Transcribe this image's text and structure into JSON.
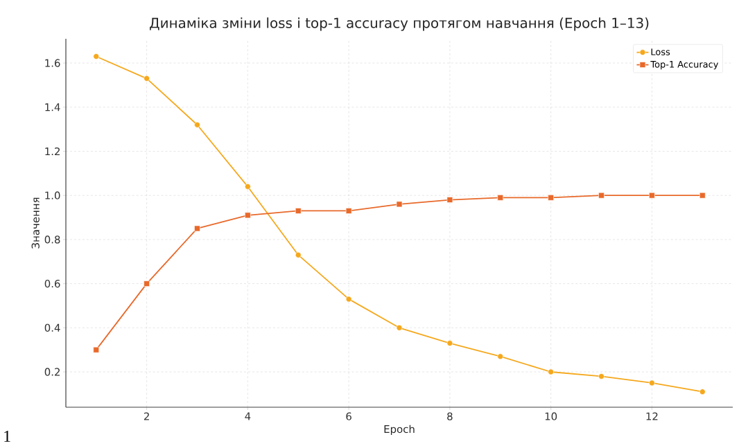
{
  "chart_data": {
    "type": "line",
    "title": "Динаміка зміни loss і top-1 accuracy протягом навчання (Epoch 1–13)",
    "xlabel": "Epoch",
    "ylabel": "Значення",
    "x": [
      1,
      2,
      3,
      4,
      5,
      6,
      7,
      8,
      9,
      10,
      11,
      12,
      13
    ],
    "series": [
      {
        "name": "Loss",
        "color": "#f5a81c",
        "marker": "circle",
        "values": [
          1.63,
          1.53,
          1.32,
          1.04,
          0.73,
          0.53,
          0.4,
          0.33,
          0.27,
          0.2,
          0.18,
          0.15,
          0.11
        ]
      },
      {
        "name": "Top-1 Accuracy",
        "color": "#e8692a",
        "marker": "square",
        "values": [
          0.3,
          0.6,
          0.85,
          0.91,
          0.93,
          0.93,
          0.96,
          0.98,
          0.99,
          0.99,
          1.0,
          1.0,
          1.0
        ]
      }
    ],
    "xlim": [
      0.4,
      13.6
    ],
    "ylim": [
      0.04,
      1.71
    ],
    "xticks": [
      2,
      4,
      6,
      8,
      10,
      12
    ],
    "yticks": [
      0.2,
      0.4,
      0.6,
      0.8,
      {
        "value": 1.0,
        "label": "1.0"
      },
      1.2,
      1.4,
      1.6
    ],
    "grid": true,
    "legend": "top right",
    "line_style": "solid",
    "annotations": [
      "1"
    ]
  }
}
